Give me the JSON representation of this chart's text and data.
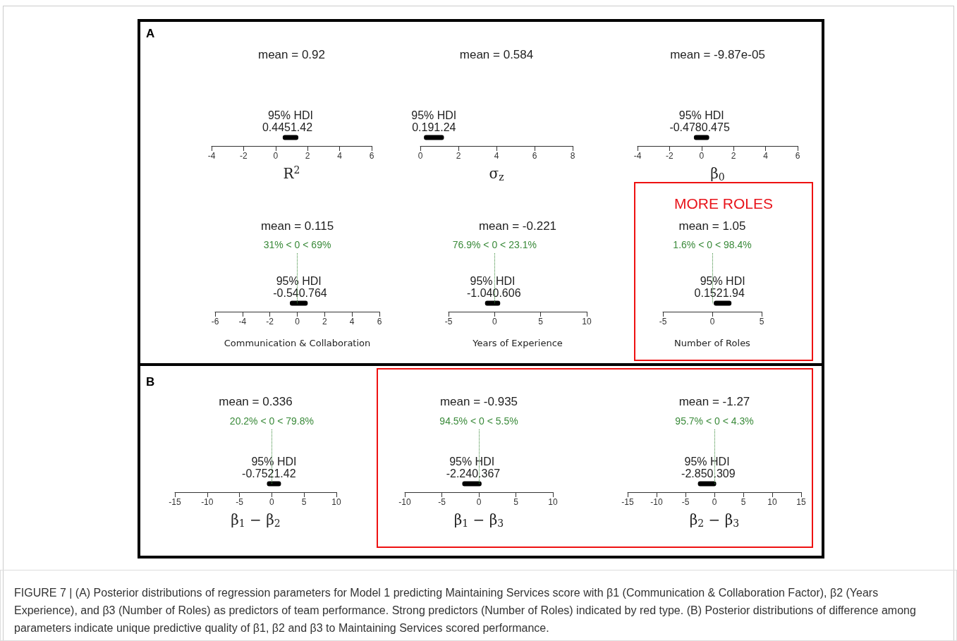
{
  "chart_data": [
    {
      "type": "bar",
      "orientation": "horizontal",
      "title": "mean = 0.92",
      "categories": [
        null
      ],
      "base": [
        0.445
      ],
      "values": [
        0.975
      ],
      "color": "#000000",
      "xlim": [
        -4,
        6
      ],
      "xticks": [
        -4,
        -2,
        0,
        2,
        4,
        6
      ],
      "xlabel": "R$^{2}$",
      "annotations": [
        "95% HDI",
        "0.445",
        "1.42",
        "A"
      ]
    },
    {
      "type": "bar",
      "orientation": "horizontal",
      "title": "mean = 0.584",
      "categories": [
        null
      ],
      "base": [
        0.19
      ],
      "values": [
        1.05
      ],
      "color": "#000000",
      "xlim": [
        0,
        8
      ],
      "xticks": [
        0,
        2,
        4,
        6,
        8
      ],
      "xlabel": "σ$_{z}$",
      "annotations": [
        "95% HDI",
        "0.19",
        "1.24"
      ]
    },
    {
      "type": "bar",
      "orientation": "horizontal",
      "title": "mean = -9.87e-05",
      "categories": [
        null
      ],
      "base": [
        -0.478
      ],
      "values": [
        0.953
      ],
      "color": "#000000",
      "xlim": [
        -4,
        6
      ],
      "xticks": [
        -4,
        -2,
        0,
        2,
        4,
        6
      ],
      "xlabel": "β$_{0}$",
      "annotations": [
        "95% HDI",
        "-0.478",
        "0.475"
      ]
    },
    {
      "type": "bar",
      "orientation": "horizontal",
      "title": "mean = 0.115",
      "categories": [
        null
      ],
      "base": [
        -0.54
      ],
      "values": [
        1.304
      ],
      "color": "#000000",
      "xlim": [
        -6,
        6
      ],
      "xticks": [
        -6,
        -4,
        -2,
        0,
        2,
        4,
        6
      ],
      "xlabel": "Communication & Collaboration",
      "annotations": [
        "95% HDI",
        "-0.54",
        "0.764"
      ],
      "ref_lines": [
        {
          "axis": "x",
          "value": 0,
          "label": "31% < 0 < 69%",
          "color": "#3a8a3a",
          "line_style": "dotted"
        }
      ]
    },
    {
      "type": "bar",
      "orientation": "horizontal",
      "title": "mean = -0.221",
      "categories": [
        null
      ],
      "base": [
        -1.04
      ],
      "values": [
        1.646
      ],
      "color": "#000000",
      "xlim": [
        -5,
        10
      ],
      "xticks": [
        -5,
        0,
        5,
        10
      ],
      "xlabel": "Years of Experience",
      "annotations": [
        "95% HDI",
        "-1.04",
        "0.606"
      ],
      "ref_lines": [
        {
          "axis": "x",
          "value": 0,
          "label": "76.9% < 0 < 23.1%",
          "color": "#3a8a3a",
          "line_style": "dotted"
        }
      ]
    },
    {
      "type": "bar",
      "orientation": "horizontal",
      "title": "mean = 1.05",
      "categories": [
        null
      ],
      "base": [
        0.152
      ],
      "values": [
        1.788
      ],
      "color": "#000000",
      "xlim": [
        -5,
        5
      ],
      "xticks": [
        -5,
        0,
        5
      ],
      "xlabel": "Number of Roles",
      "annotations": [
        "95% HDI",
        "0.152",
        "1.94",
        "MORE ROLES"
      ],
      "ref_lines": [
        {
          "axis": "x",
          "value": 0,
          "label": "1.6% < 0 < 98.4%",
          "color": "#3a8a3a",
          "line_style": "dotted"
        }
      ]
    },
    {
      "type": "bar",
      "orientation": "horizontal",
      "title": "mean = 0.336",
      "categories": [
        null
      ],
      "base": [
        -0.752
      ],
      "values": [
        2.172
      ],
      "color": "#000000",
      "xlim": [
        -15,
        10
      ],
      "xticks": [
        -15,
        -10,
        -5,
        0,
        5,
        10
      ],
      "xlabel": "β$_{1}$ − β$_{2}$",
      "annotations": [
        "95% HDI",
        "-0.752",
        "1.42",
        "B"
      ],
      "ref_lines": [
        {
          "axis": "x",
          "value": 0,
          "label": "20.2% < 0 < 79.8%",
          "color": "#3a8a3a",
          "line_style": "dotted"
        }
      ]
    },
    {
      "type": "bar",
      "orientation": "horizontal",
      "title": "mean = -0.935",
      "categories": [
        null
      ],
      "base": [
        -2.24
      ],
      "values": [
        2.607
      ],
      "color": "#000000",
      "xlim": [
        -10,
        10
      ],
      "xticks": [
        -10,
        -5,
        0,
        5,
        10
      ],
      "xlabel": "β$_{1}$ − β$_{3}$",
      "annotations": [
        "95% HDI",
        "-2.24",
        "0.367"
      ],
      "ref_lines": [
        {
          "axis": "x",
          "value": 0,
          "label": "94.5% < 0 < 5.5%",
          "color": "#3a8a3a",
          "line_style": "dotted"
        }
      ]
    },
    {
      "type": "bar",
      "orientation": "horizontal",
      "title": "mean = -1.27",
      "categories": [
        null
      ],
      "base": [
        -2.85
      ],
      "values": [
        3.159
      ],
      "color": "#000000",
      "xlim": [
        -15,
        15
      ],
      "xticks": [
        -15,
        -10,
        -5,
        0,
        5,
        10,
        15
      ],
      "xlabel": "β$_{2}$ − β$_{3}$",
      "annotations": [
        "95% HDI",
        "-2.85",
        "0.309",
        "FIGURE 7 | (A) Posterior distributions of regression parameters for Model 1 predicting Maintaining Services score with β1 (Communication & Collaboration Factor), β2 (Years Experience), and β3 (Number of Roles) as predictors of team performance. Strong predictors (Number of Roles) indicated by red type. (B) Posterior distributions of difference among parameters indicate unique predictive quality of β1, β2 and β3 to Maintaining Services scored performance."
      ],
      "ref_lines": [
        {
          "axis": "x",
          "value": 0,
          "label": "95.7% < 0 < 4.3%",
          "color": "#3a8a3a",
          "line_style": "dotted"
        }
      ]
    }
  ]
}
